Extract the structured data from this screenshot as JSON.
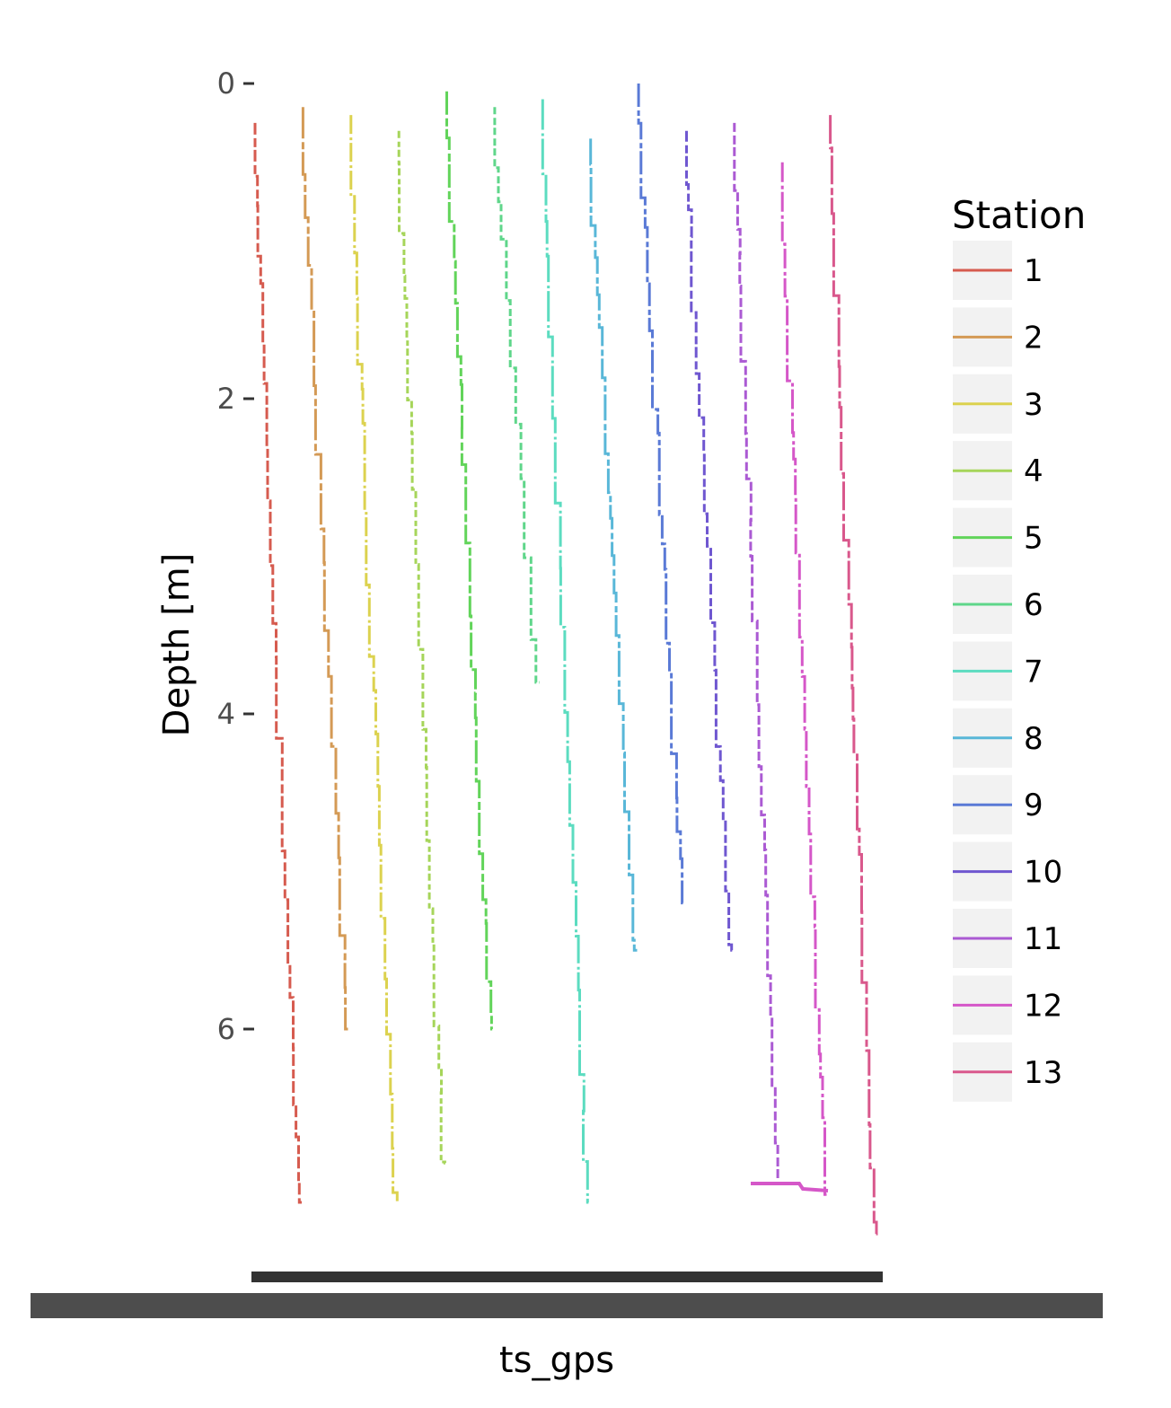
{
  "chart_data": {
    "type": "line",
    "title": "",
    "xlabel": "ts_gps",
    "ylabel": "Depth [m]",
    "ylim": [
      7.35,
      -0.1
    ],
    "y_reversed": true,
    "y_ticks": [
      "0",
      "2",
      "4",
      "6"
    ],
    "x_tick_labels_overlapping": true,
    "grid": false,
    "legend": {
      "title": "Station",
      "placement": "right"
    },
    "series": [
      {
        "name": "1",
        "color": "#d65b4f",
        "depth_start": 0.25,
        "depth_end": 7.1
      },
      {
        "name": "2",
        "color": "#d49a55",
        "depth_start": 0.15,
        "depth_end": 6.0
      },
      {
        "name": "3",
        "color": "#dcd24f",
        "depth_start": 0.2,
        "depth_end": 7.1
      },
      {
        "name": "4",
        "color": "#a6d55a",
        "depth_start": 0.3,
        "depth_end": 6.85
      },
      {
        "name": "5",
        "color": "#62d45a",
        "depth_start": 0.05,
        "depth_end": 6.0
      },
      {
        "name": "6",
        "color": "#5fd68a",
        "depth_start": 0.15,
        "depth_end": 3.8
      },
      {
        "name": "7",
        "color": "#5cdcc0",
        "depth_start": 0.1,
        "depth_end": 7.1
      },
      {
        "name": "8",
        "color": "#59b7d8",
        "depth_start": 0.35,
        "depth_end": 5.5
      },
      {
        "name": "9",
        "color": "#5a7ad6",
        "depth_start": 0.0,
        "depth_end": 5.2
      },
      {
        "name": "10",
        "color": "#6f57d0",
        "depth_start": 0.3,
        "depth_end": 5.5
      },
      {
        "name": "11",
        "color": "#ab5ad3",
        "depth_start": 0.25,
        "depth_end": 6.95
      },
      {
        "name": "12",
        "color": "#d557c8",
        "depth_start": 0.5,
        "depth_end": 7.05
      },
      {
        "name": "13",
        "color": "#d9588c",
        "depth_start": 0.2,
        "depth_end": 7.3
      }
    ]
  }
}
